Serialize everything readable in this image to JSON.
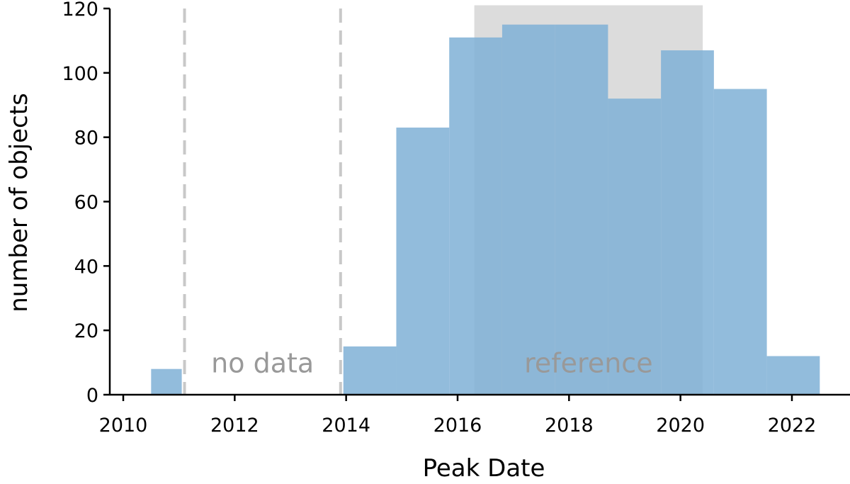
{
  "chart_data": {
    "type": "bar",
    "title": "",
    "xlabel": "Peak Date",
    "ylabel": "number of objects",
    "xlim": [
      2009.8,
      2023.0
    ],
    "ylim": [
      0,
      120
    ],
    "xticks": [
      2010,
      2012,
      2014,
      2016,
      2018,
      2020,
      2022
    ],
    "yticks": [
      0,
      20,
      40,
      60,
      80,
      100,
      120
    ],
    "grid": false,
    "bar_color": "#7fb0d6",
    "series": [
      {
        "bins": [
          {
            "x0": 2010.5,
            "x1": 2011.05,
            "value": 8
          },
          {
            "x0": 2013.95,
            "x1": 2014.9,
            "value": 15
          },
          {
            "x0": 2014.9,
            "x1": 2015.85,
            "value": 83
          },
          {
            "x0": 2015.85,
            "x1": 2016.8,
            "value": 111
          },
          {
            "x0": 2016.8,
            "x1": 2017.75,
            "value": 115
          },
          {
            "x0": 2017.75,
            "x1": 2018.7,
            "value": 115
          },
          {
            "x0": 2018.7,
            "x1": 2019.65,
            "value": 92
          },
          {
            "x0": 2019.65,
            "x1": 2020.6,
            "value": 107
          },
          {
            "x0": 2020.6,
            "x1": 2021.55,
            "value": 95
          },
          {
            "x0": 2021.55,
            "x1": 2022.5,
            "value": 12
          }
        ]
      }
    ],
    "reference_region": {
      "x0": 2016.3,
      "x1": 2020.4,
      "y_top": 121,
      "color": "#dcdcdc"
    },
    "vlines": [
      {
        "x": 2011.1,
        "color": "#c8c8c8",
        "style": "dashed"
      },
      {
        "x": 2013.9,
        "color": "#c8c8c8",
        "style": "dashed"
      }
    ],
    "annotations": [
      {
        "text": "no data",
        "x": 2012.5,
        "y": 8
      },
      {
        "text": "reference",
        "x": 2018.35,
        "y": 8
      }
    ]
  }
}
